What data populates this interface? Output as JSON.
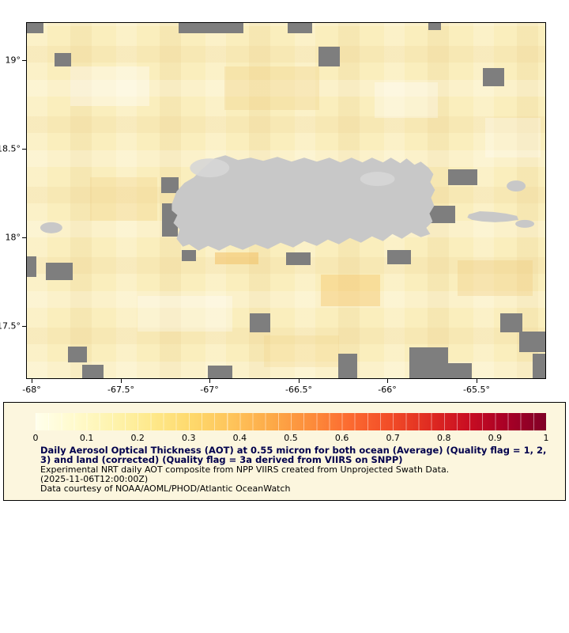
{
  "colors": {
    "ocean": "#FAEEBD",
    "missing": "#7E7E7E",
    "land": "#C8C8C8",
    "land_light": "#D6D6D6",
    "legend_bg": "#FCF6DE",
    "title_text": "#00004D",
    "body_text": "#000000",
    "axis_text": "#000000"
  },
  "map": {
    "x_axis": {
      "ticks": [
        {
          "label": "-68°",
          "px": 7
        },
        {
          "label": "-67.5°",
          "px": 120
        },
        {
          "label": "-67°",
          "px": 232
        },
        {
          "label": "-66.5°",
          "px": 345
        },
        {
          "label": "-66°",
          "px": 457
        },
        {
          "label": "-65.5°",
          "px": 570
        }
      ]
    },
    "y_axis": {
      "ticks": [
        {
          "label": "19°",
          "py": 48
        },
        {
          "label": "18.5°",
          "py": 160
        },
        {
          "label": "18°",
          "py": 272
        },
        {
          "label": "17.5°",
          "py": 384
        }
      ]
    },
    "patches": [
      [
        55,
        55,
        100,
        50,
        "rgba(255,255,255,0.35)"
      ],
      [
        250,
        55,
        120,
        55,
        "rgba(240,205,125,0.30)"
      ],
      [
        440,
        75,
        80,
        45,
        "rgba(255,255,255,0.30)"
      ],
      [
        80,
        195,
        85,
        55,
        "rgba(240,205,125,0.25)"
      ],
      [
        545,
        300,
        95,
        45,
        "rgba(238,200,120,0.30)"
      ],
      [
        140,
        345,
        120,
        45,
        "rgba(255,255,255,0.30)"
      ],
      [
        372,
        318,
        75,
        40,
        "rgba(244,196,100,0.40)"
      ],
      [
        238,
        290,
        55,
        15,
        "rgba(242,190,95,0.50)"
      ],
      [
        300,
        395,
        95,
        40,
        "rgba(240,205,125,0.22)"
      ],
      [
        580,
        120,
        70,
        50,
        "rgba(255,255,255,0.28)"
      ],
      [
        0,
        0,
        21,
        13
      ],
      [
        35,
        38,
        21,
        17
      ],
      [
        192,
        0,
        82,
        13
      ],
      [
        330,
        0,
        31,
        13
      ],
      [
        369,
        30,
        27,
        25
      ],
      [
        508,
        0,
        16,
        9
      ],
      [
        577,
        57,
        27,
        23
      ],
      [
        0,
        295,
        12,
        26
      ],
      [
        24,
        303,
        34,
        22
      ],
      [
        170,
        195,
        22,
        20
      ],
      [
        171,
        228,
        20,
        42
      ],
      [
        196,
        287,
        18,
        14
      ],
      [
        328,
        290,
        31,
        16
      ],
      [
        456,
        287,
        30,
        18
      ],
      [
        508,
        231,
        34,
        22
      ],
      [
        533,
        185,
        37,
        20
      ],
      [
        282,
        367,
        26,
        24
      ],
      [
        599,
        367,
        28,
        24
      ],
      [
        623,
        390,
        34,
        26
      ],
      [
        52,
        409,
        24,
        20
      ],
      [
        70,
        432,
        27,
        17
      ],
      [
        229,
        433,
        31,
        17
      ],
      [
        394,
        418,
        24,
        32
      ],
      [
        484,
        410,
        49,
        40
      ],
      [
        533,
        430,
        30,
        20
      ],
      [
        640,
        418,
        17,
        32
      ]
    ]
  },
  "legend": {
    "colorbar_stops": [
      "#FFFFEC",
      "#FFFACC",
      "#FEF3AC",
      "#FEE88A",
      "#FED86B",
      "#FEC45B",
      "#FDAA48",
      "#FD8D3B",
      "#FC6A30",
      "#F24D28",
      "#E02C21",
      "#C90E22",
      "#A80026",
      "#800026"
    ],
    "scale_ticks": [
      "0",
      "0.1",
      "0.2",
      "0.3",
      "0.4",
      "0.5",
      "0.6",
      "0.7",
      "0.8",
      "0.9",
      "1"
    ],
    "title": "Daily Aerosol Optical Thickness (AOT) at 0.55 micron for both ocean (Average) (Quality flag = 1, 2, 3) and land (corrected) (Quality flag = 3a derived from VIIRS on SNPP)",
    "line1": "Experimental NRT daily AOT composite from NPP VIIRS created from Unprojected Swath Data.",
    "line2": "(2025-11-06T12:00:00Z)",
    "line3": "Data courtesy of NOAA/AOML/PHOD/Atlantic OceanWatch"
  }
}
